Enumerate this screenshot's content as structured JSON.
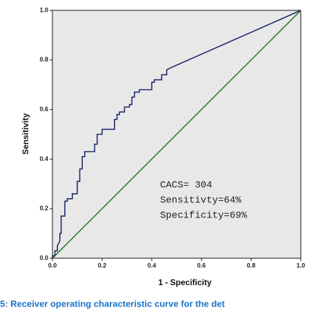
{
  "chart_data": {
    "type": "line",
    "xlabel": "1 - Specificity",
    "ylabel": "Sensitivity",
    "caption": "5: Receiver operating characteristic curve for the det",
    "annotations": [
      "CACS= 304",
      "Sensitivty=64%",
      "Specificity=69%"
    ],
    "xlim": [
      0,
      1
    ],
    "ylim": [
      0,
      1
    ],
    "xticks": [
      {
        "value": 0,
        "label": "0.0"
      },
      0.2,
      0.4,
      0.6,
      0.8,
      {
        "value": 1,
        "label": "1.0"
      }
    ],
    "yticks": [
      {
        "value": 0,
        "label": "0.0"
      },
      0.2,
      0.4,
      0.6,
      0.8,
      {
        "value": 1,
        "label": "1.0"
      }
    ],
    "background": "#e8e8e8",
    "series": [
      {
        "color": "#1f2a6b",
        "x": [
          0,
          0,
          0.01,
          0.01,
          0.02,
          0.02,
          0.03,
          0.03,
          0.035,
          0.035,
          0.05,
          0.05,
          0.06,
          0.06,
          0.08,
          0.08,
          0.1,
          0.1,
          0.11,
          0.11,
          0.12,
          0.12,
          0.13,
          0.13,
          0.17,
          0.17,
          0.18,
          0.18,
          0.2,
          0.2,
          0.25,
          0.25,
          0.26,
          0.26,
          0.27,
          0.27,
          0.29,
          0.29,
          0.31,
          0.31,
          0.32,
          0.32,
          0.33,
          0.33,
          0.35,
          0.35,
          0.4,
          0.4,
          0.41,
          0.41,
          0.44,
          0.44,
          0.46,
          0.46,
          0.48,
          1
        ],
        "values": [
          0,
          0.01,
          0.01,
          0.03,
          0.03,
          0.05,
          0.07,
          0.1,
          0.1,
          0.17,
          0.17,
          0.23,
          0.23,
          0.24,
          0.24,
          0.26,
          0.26,
          0.31,
          0.31,
          0.36,
          0.36,
          0.41,
          0.41,
          0.43,
          0.43,
          0.46,
          0.46,
          0.5,
          0.5,
          0.52,
          0.52,
          0.56,
          0.56,
          0.58,
          0.58,
          0.59,
          0.59,
          0.61,
          0.61,
          0.62,
          0.62,
          0.65,
          0.65,
          0.67,
          0.67,
          0.68,
          0.68,
          0.71,
          0.71,
          0.72,
          0.72,
          0.74,
          0.74,
          0.76,
          0.77,
          1
        ]
      },
      {
        "color": "#2e7d32",
        "x": [
          0,
          1
        ],
        "values": [
          0,
          1
        ]
      }
    ]
  }
}
